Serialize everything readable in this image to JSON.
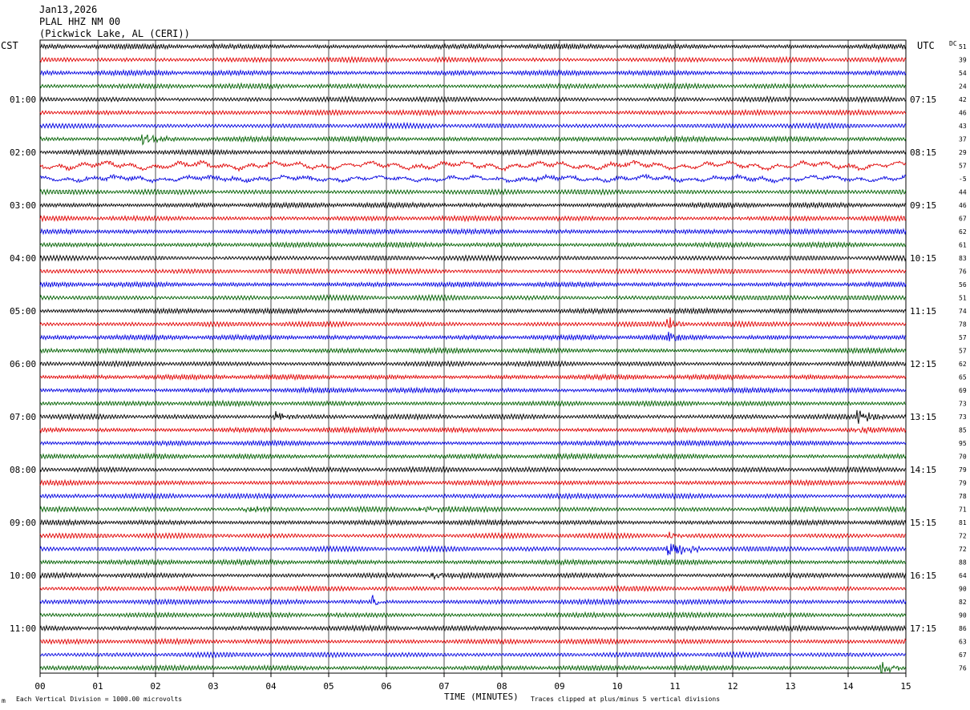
{
  "header": {
    "date": "Jan13,2026",
    "station": "PLAL HHZ NM 00",
    "location": "(Pickwick Lake, AL (CERI))"
  },
  "left_tz": "CST",
  "right_tz": "UTC",
  "dc_header": "DC",
  "footer": {
    "scale_note": "Each Vertical Division = 1000.00 microvolts",
    "clip_note": "Traces clipped at plus/minus 5 vertical divisions",
    "mark": "m"
  },
  "chart_data": {
    "type": "line",
    "title": "",
    "xlabel": "TIME (MINUTES)",
    "ylabel": "",
    "x_ticks": [
      "00",
      "01",
      "02",
      "03",
      "04",
      "05",
      "06",
      "07",
      "08",
      "09",
      "10",
      "11",
      "12",
      "13",
      "14",
      "15"
    ],
    "xlim": [
      0,
      15
    ],
    "grid": true,
    "trace_minutes": 15,
    "trace_colors": [
      "#000000",
      "#e00000",
      "#0000e0",
      "#006000"
    ],
    "left_hour_labels": [
      "01:00",
      "02:00",
      "03:00",
      "04:00",
      "05:00",
      "06:00",
      "07:00",
      "08:00",
      "09:00",
      "10:00",
      "11:00"
    ],
    "right_hour_labels": [
      "07:15",
      "08:15",
      "09:15",
      "10:15",
      "11:15",
      "12:15",
      "13:15",
      "14:15",
      "15:15",
      "16:15",
      "17:15"
    ],
    "dc_offsets": [
      "51",
      "39",
      "54",
      "24",
      "42",
      "46",
      "43",
      "37",
      "29",
      "57",
      "-5",
      "44",
      "46",
      "67",
      "62",
      "61",
      "83",
      "76",
      "56",
      "51",
      "74",
      "78",
      "57",
      "57",
      "62",
      "65",
      "69",
      "73",
      "73",
      "85",
      "95",
      "70",
      "79",
      "79",
      "78",
      "71",
      "81",
      "72",
      "72",
      "88",
      "64",
      "90",
      "82",
      "90",
      "86",
      "63",
      "67",
      "76"
    ],
    "events": [
      {
        "row": 7,
        "minute": 1.8,
        "amp": 2.5,
        "dur": 0.5
      },
      {
        "row": 9,
        "minute": 0,
        "amp": 2.6,
        "dur": 15,
        "kind": "noisy"
      },
      {
        "row": 10,
        "minute": 0,
        "amp": 1.8,
        "dur": 15,
        "kind": "noisy"
      },
      {
        "row": 21,
        "minute": 10.9,
        "amp": 2.8,
        "dur": 0.3
      },
      {
        "row": 22,
        "minute": 10.9,
        "amp": 2.0,
        "dur": 0.3
      },
      {
        "row": 28,
        "minute": 4.1,
        "amp": 2.5,
        "dur": 0.4
      },
      {
        "row": 28,
        "minute": 14.2,
        "amp": 2.6,
        "dur": 0.5
      },
      {
        "row": 29,
        "minute": 14.2,
        "amp": 1.4,
        "dur": 0.4
      },
      {
        "row": 35,
        "minute": 3.6,
        "amp": 1.3,
        "dur": 0.8
      },
      {
        "row": 35,
        "minute": 6.6,
        "amp": 1.2,
        "dur": 1.0
      },
      {
        "row": 38,
        "minute": 10.9,
        "amp": 4.5,
        "dur": 0.6
      },
      {
        "row": 37,
        "minute": 10.9,
        "amp": 1.8,
        "dur": 0.3
      },
      {
        "row": 40,
        "minute": 6.8,
        "amp": 1.5,
        "dur": 0.6
      },
      {
        "row": 42,
        "minute": 5.8,
        "amp": 3.0,
        "dur": 0.2
      },
      {
        "row": 47,
        "minute": 14.6,
        "amp": 2.5,
        "dur": 0.4
      }
    ]
  }
}
